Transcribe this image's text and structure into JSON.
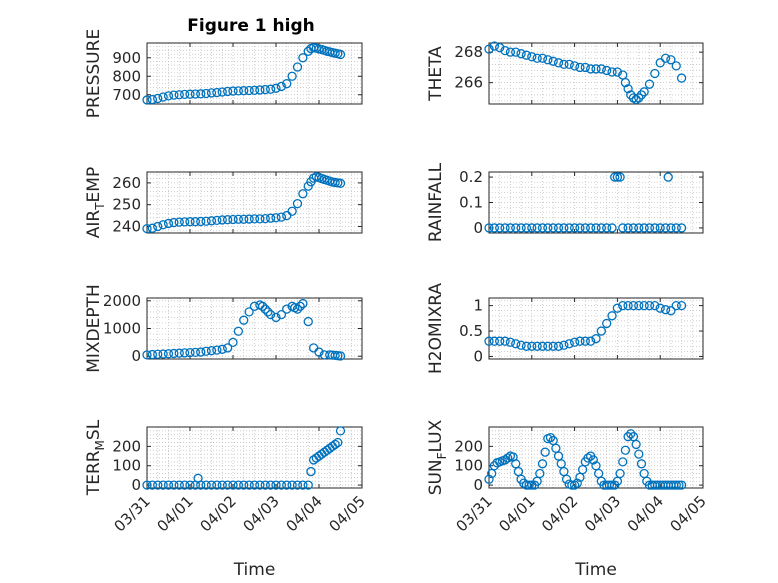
{
  "figure": {
    "title": "Figure 1 high"
  },
  "chart_data": [
    {
      "type": "scatter",
      "panel": "pressure",
      "title": "Figure 1 high",
      "ylabel": {
        "main": "PRESSURE",
        "sub": "",
        "tail": ""
      },
      "ylim": [
        650,
        980
      ],
      "yticks": [
        700,
        800,
        900
      ],
      "xlim": [
        0,
        4
      ],
      "xlabel": "",
      "xticks": [],
      "grid": true,
      "series": [
        {
          "x": [
            0,
            0.1,
            0.2,
            0.3,
            0.4,
            0.5,
            0.6,
            0.7,
            0.8,
            0.9,
            1.0,
            1.1,
            1.2,
            1.3,
            1.4,
            1.5,
            1.6,
            1.7,
            1.8,
            1.9,
            2.0,
            2.1,
            2.2,
            2.3,
            2.4,
            2.5,
            2.6,
            2.7,
            2.8,
            2.9,
            3.0,
            3.05,
            3.1,
            3.15,
            3.2,
            3.25,
            3.3,
            3.35,
            3.4,
            3.45,
            3.5,
            3.55,
            3.6
          ],
          "y": [
            672,
            674,
            680,
            688,
            694,
            698,
            700,
            702,
            703,
            704,
            705,
            707,
            710,
            712,
            715,
            718,
            720,
            721,
            722,
            723,
            724,
            726,
            728,
            730,
            735,
            745,
            760,
            800,
            850,
            900,
            935,
            950,
            955,
            952,
            948,
            945,
            940,
            935,
            932,
            928,
            925,
            922,
            918
          ]
        }
      ]
    },
    {
      "type": "scatter",
      "panel": "theta",
      "ylabel": {
        "main": "THETA",
        "sub": "",
        "tail": ""
      },
      "ylim": [
        264.6,
        268.6
      ],
      "yticks": [
        266,
        268
      ],
      "xlim": [
        0,
        4
      ],
      "xlabel": "",
      "xticks": [],
      "grid": true,
      "series": [
        {
          "x": [
            0,
            0.1,
            0.2,
            0.3,
            0.4,
            0.5,
            0.6,
            0.7,
            0.8,
            0.9,
            1.0,
            1.1,
            1.2,
            1.3,
            1.4,
            1.5,
            1.6,
            1.7,
            1.8,
            1.9,
            2.0,
            2.1,
            2.2,
            2.3,
            2.4,
            2.5,
            2.55,
            2.6,
            2.65,
            2.7,
            2.75,
            2.8,
            2.85,
            2.9,
            3.0,
            3.1,
            3.2,
            3.3,
            3.4,
            3.5,
            3.6
          ],
          "y": [
            268.2,
            268.4,
            268.3,
            268.1,
            268.0,
            268.0,
            267.9,
            267.8,
            267.7,
            267.6,
            267.6,
            267.5,
            267.4,
            267.3,
            267.2,
            267.2,
            267.1,
            267.0,
            267.0,
            266.9,
            266.9,
            266.9,
            266.8,
            266.7,
            266.7,
            266.5,
            266.0,
            265.6,
            265.2,
            265.0,
            264.9,
            265.0,
            265.2,
            265.4,
            265.9,
            266.6,
            267.3,
            267.6,
            267.5,
            267.1,
            266.3
          ]
        }
      ]
    },
    {
      "type": "scatter",
      "panel": "air_temp",
      "ylabel": {
        "main": "AIR",
        "sub": "T",
        "tail": "EMP"
      },
      "ylim": [
        237,
        265
      ],
      "yticks": [
        240,
        250,
        260
      ],
      "xlim": [
        0,
        4
      ],
      "xlabel": "",
      "xticks": [],
      "grid": true,
      "series": [
        {
          "x": [
            0,
            0.1,
            0.2,
            0.3,
            0.4,
            0.5,
            0.6,
            0.7,
            0.8,
            0.9,
            1.0,
            1.1,
            1.2,
            1.3,
            1.4,
            1.5,
            1.6,
            1.7,
            1.8,
            1.9,
            2.0,
            2.1,
            2.2,
            2.3,
            2.4,
            2.5,
            2.6,
            2.7,
            2.8,
            2.9,
            3.0,
            3.05,
            3.1,
            3.15,
            3.2,
            3.25,
            3.3,
            3.35,
            3.4,
            3.45,
            3.5,
            3.55,
            3.6
          ],
          "y": [
            239.0,
            239.2,
            240.0,
            240.8,
            241.4,
            241.8,
            242.0,
            242.1,
            242.2,
            242.2,
            242.3,
            242.4,
            242.6,
            242.8,
            243.0,
            243.1,
            243.2,
            243.3,
            243.3,
            243.4,
            243.5,
            243.5,
            243.6,
            243.8,
            244.0,
            244.3,
            245.0,
            247.0,
            250.5,
            255.0,
            258.5,
            260.5,
            262.2,
            262.8,
            262.5,
            262.0,
            261.6,
            261.2,
            260.8,
            260.4,
            260.2,
            260.0,
            259.8
          ]
        }
      ]
    },
    {
      "type": "scatter",
      "panel": "rainfall",
      "ylabel": {
        "main": "RAINFALL",
        "sub": "",
        "tail": ""
      },
      "ylim": [
        -0.02,
        0.22
      ],
      "yticks": [
        0,
        0.1,
        0.2
      ],
      "xlim": [
        0,
        4
      ],
      "xlabel": "",
      "xticks": [],
      "grid": true,
      "series": [
        {
          "x": [
            0,
            0.1,
            0.2,
            0.3,
            0.4,
            0.5,
            0.6,
            0.7,
            0.8,
            0.9,
            1.0,
            1.1,
            1.2,
            1.3,
            1.4,
            1.5,
            1.6,
            1.7,
            1.8,
            1.9,
            2.0,
            2.1,
            2.2,
            2.3,
            2.35,
            2.4,
            2.45,
            2.5,
            2.6,
            2.7,
            2.8,
            2.9,
            3.0,
            3.1,
            3.2,
            3.3,
            3.35,
            3.4,
            3.5,
            3.6
          ],
          "y": [
            0,
            0,
            0,
            0,
            0,
            0,
            0,
            0,
            0,
            0,
            0,
            0,
            0,
            0,
            0,
            0,
            0,
            0,
            0,
            0,
            0,
            0,
            0,
            0,
            0.2,
            0.2,
            0.2,
            0,
            0,
            0,
            0,
            0,
            0,
            0,
            0,
            0,
            0.2,
            0,
            0,
            0
          ]
        }
      ]
    },
    {
      "type": "scatter",
      "panel": "mixdepth",
      "ylabel": {
        "main": "MIXDEPTH",
        "sub": "",
        "tail": ""
      },
      "ylim": [
        -100,
        2100
      ],
      "yticks": [
        0,
        1000,
        2000
      ],
      "xlim": [
        0,
        4
      ],
      "xlabel": "",
      "xticks": [],
      "grid": true,
      "series": [
        {
          "x": [
            0,
            0.1,
            0.2,
            0.3,
            0.4,
            0.5,
            0.6,
            0.7,
            0.8,
            0.9,
            1.0,
            1.1,
            1.2,
            1.3,
            1.4,
            1.5,
            1.6,
            1.7,
            1.8,
            1.9,
            2.0,
            2.1,
            2.15,
            2.2,
            2.25,
            2.3,
            2.4,
            2.5,
            2.6,
            2.7,
            2.75,
            2.8,
            2.85,
            2.9,
            3.0,
            3.1,
            3.2,
            3.3,
            3.4,
            3.45,
            3.5,
            3.55,
            3.6
          ],
          "y": [
            50,
            60,
            70,
            80,
            90,
            100,
            110,
            120,
            130,
            140,
            150,
            180,
            200,
            220,
            250,
            300,
            500,
            900,
            1300,
            1600,
            1800,
            1850,
            1800,
            1700,
            1600,
            1500,
            1400,
            1500,
            1700,
            1800,
            1750,
            1700,
            1800,
            1900,
            1250,
            300,
            150,
            50,
            50,
            40,
            30,
            20,
            10
          ]
        }
      ]
    },
    {
      "type": "scatter",
      "panel": "h2omixra",
      "ylabel": {
        "main": "H2OMIXRA",
        "sub": "",
        "tail": ""
      },
      "ylim": [
        -0.05,
        1.15
      ],
      "yticks": [
        0,
        0.5,
        1
      ],
      "xlim": [
        0,
        4
      ],
      "xlabel": "",
      "xticks": [],
      "grid": true,
      "series": [
        {
          "x": [
            0,
            0.1,
            0.2,
            0.3,
            0.4,
            0.5,
            0.6,
            0.7,
            0.8,
            0.9,
            1.0,
            1.1,
            1.2,
            1.3,
            1.4,
            1.5,
            1.6,
            1.7,
            1.8,
            1.9,
            2.0,
            2.1,
            2.2,
            2.3,
            2.4,
            2.5,
            2.6,
            2.7,
            2.8,
            2.9,
            3.0,
            3.1,
            3.2,
            3.3,
            3.4,
            3.5,
            3.6
          ],
          "y": [
            0.3,
            0.3,
            0.3,
            0.3,
            0.28,
            0.25,
            0.22,
            0.2,
            0.2,
            0.2,
            0.2,
            0.2,
            0.2,
            0.2,
            0.22,
            0.25,
            0.28,
            0.3,
            0.3,
            0.3,
            0.35,
            0.5,
            0.65,
            0.8,
            0.95,
            1.0,
            1.0,
            1.0,
            1.0,
            1.0,
            1.0,
            1.0,
            0.95,
            0.92,
            0.9,
            1.0,
            1.0
          ]
        }
      ]
    },
    {
      "type": "scatter",
      "panel": "terr_msl",
      "ylabel": {
        "main": "TERR",
        "sub": "M",
        "tail": "SL"
      },
      "ylim": [
        -15,
        300
      ],
      "yticks": [
        0,
        100,
        200
      ],
      "xlim": [
        0,
        4
      ],
      "xlabel": "Time",
      "xticks": [
        "03/31",
        "04/01",
        "04/02",
        "04/03",
        "04/04",
        "04/05"
      ],
      "grid": true,
      "series": [
        {
          "x": [
            0,
            0.1,
            0.2,
            0.3,
            0.4,
            0.5,
            0.6,
            0.7,
            0.8,
            0.9,
            0.95,
            1.0,
            1.1,
            1.2,
            1.3,
            1.4,
            1.5,
            1.6,
            1.7,
            1.8,
            1.9,
            2.0,
            2.1,
            2.2,
            2.3,
            2.4,
            2.5,
            2.6,
            2.7,
            2.8,
            2.9,
            3.0,
            3.05,
            3.1,
            3.15,
            3.2,
            3.25,
            3.3,
            3.35,
            3.4,
            3.45,
            3.5,
            3.55,
            3.6
          ],
          "y": [
            0,
            0,
            0,
            0,
            0,
            0,
            0,
            0,
            0,
            0,
            35,
            0,
            0,
            0,
            0,
            0,
            0,
            0,
            0,
            0,
            0,
            0,
            0,
            0,
            0,
            0,
            0,
            0,
            0,
            0,
            0,
            0,
            70,
            130,
            140,
            150,
            160,
            170,
            180,
            190,
            200,
            210,
            220,
            280
          ]
        }
      ]
    },
    {
      "type": "scatter",
      "panel": "sun_flux",
      "ylabel": {
        "main": "SUN",
        "sub": "F",
        "tail": "LUX"
      },
      "ylim": [
        -15,
        300
      ],
      "yticks": [
        0,
        100,
        200
      ],
      "xlim": [
        0,
        4
      ],
      "xlabel": "Time",
      "xticks": [
        "03/31",
        "04/01",
        "04/02",
        "04/03",
        "04/04",
        "04/05"
      ],
      "grid": true,
      "series": [
        {
          "x": [
            0,
            0.05,
            0.1,
            0.15,
            0.2,
            0.25,
            0.3,
            0.35,
            0.4,
            0.45,
            0.5,
            0.55,
            0.6,
            0.65,
            0.7,
            0.75,
            0.8,
            0.85,
            0.9,
            0.95,
            1.0,
            1.05,
            1.1,
            1.15,
            1.2,
            1.25,
            1.3,
            1.35,
            1.4,
            1.45,
            1.5,
            1.55,
            1.6,
            1.65,
            1.7,
            1.75,
            1.8,
            1.85,
            1.9,
            1.95,
            2.0,
            2.05,
            2.1,
            2.15,
            2.2,
            2.25,
            2.3,
            2.35,
            2.4,
            2.45,
            2.5,
            2.55,
            2.6,
            2.65,
            2.7,
            2.75,
            2.8,
            2.85,
            2.9,
            2.95,
            3.0,
            3.05,
            3.1,
            3.15,
            3.2,
            3.25,
            3.3,
            3.35,
            3.4,
            3.45,
            3.5,
            3.55,
            3.6
          ],
          "y": [
            30,
            60,
            100,
            115,
            120,
            125,
            130,
            140,
            150,
            145,
            110,
            70,
            30,
            10,
            0,
            0,
            0,
            0,
            20,
            60,
            110,
            170,
            240,
            245,
            230,
            190,
            150,
            110,
            70,
            30,
            5,
            0,
            0,
            10,
            40,
            80,
            120,
            140,
            150,
            130,
            100,
            60,
            20,
            0,
            0,
            0,
            0,
            0,
            20,
            60,
            120,
            180,
            250,
            265,
            250,
            210,
            160,
            110,
            60,
            20,
            0,
            0,
            0,
            0,
            0,
            0,
            0,
            0,
            0,
            0,
            0,
            0,
            0
          ]
        }
      ]
    }
  ]
}
